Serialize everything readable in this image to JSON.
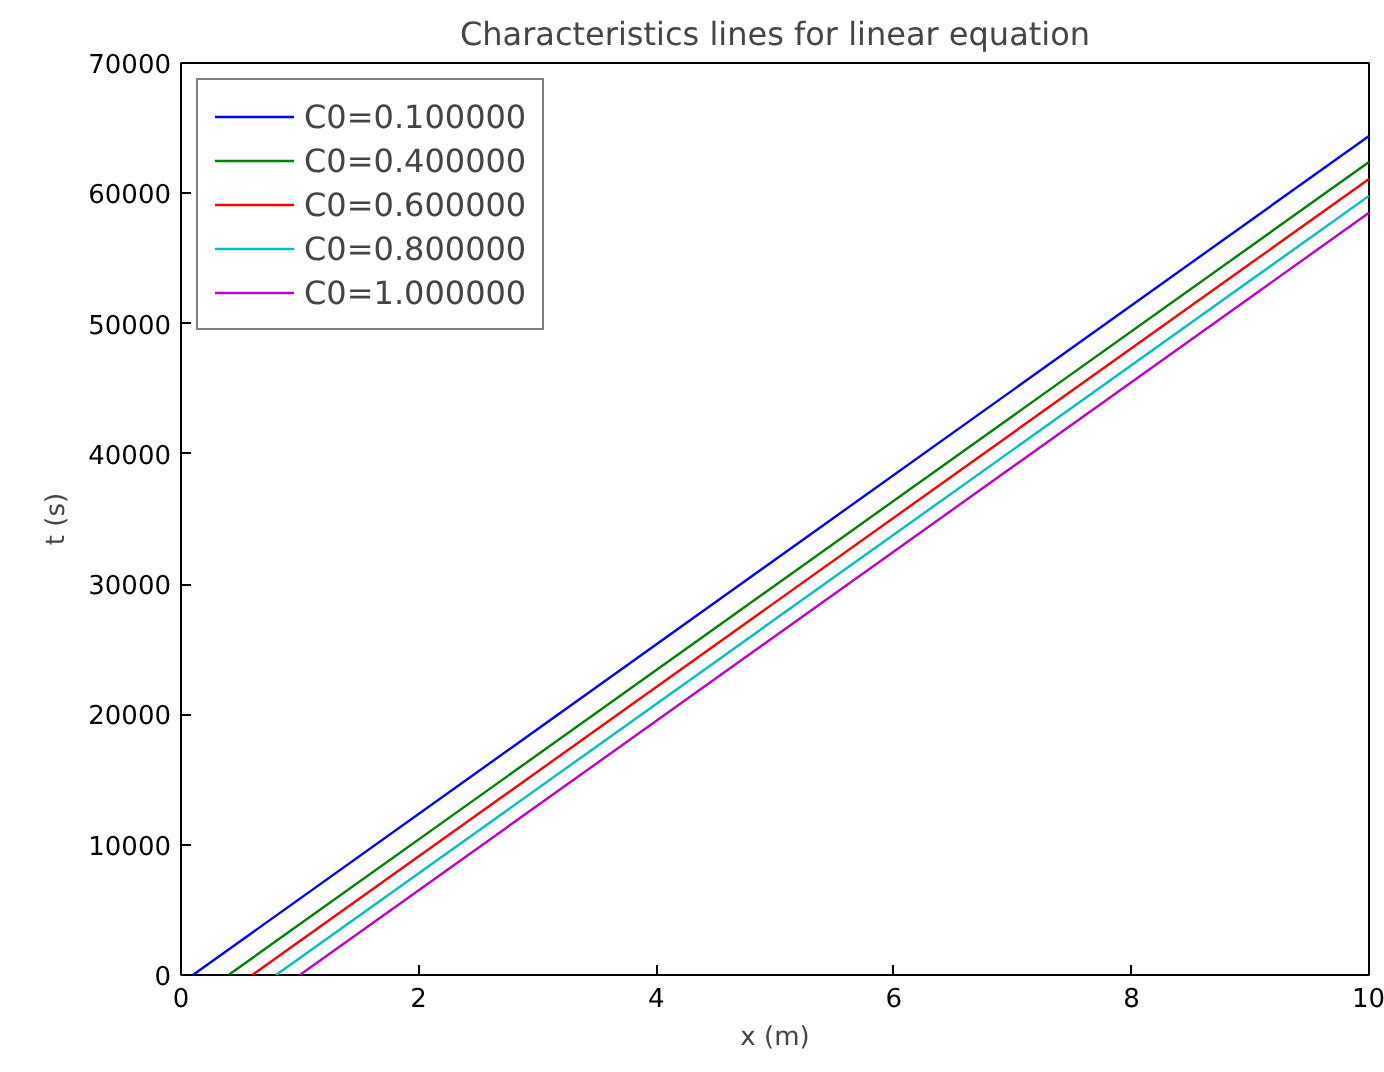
{
  "chart_data": {
    "type": "line",
    "title": "Characteristics lines for linear equation",
    "xlabel": "x (m)",
    "ylabel": "t (s)",
    "xlim": [
      0,
      10
    ],
    "ylim": [
      0,
      70000
    ],
    "xticks": [
      0,
      2,
      4,
      6,
      8,
      10
    ],
    "yticks": [
      0,
      10000,
      20000,
      30000,
      40000,
      50000,
      60000,
      70000
    ],
    "grid": false,
    "legend": "top left",
    "marker": "none",
    "line_style": "solid",
    "series": [
      {
        "name": "C0=0.100000",
        "color": "#0000ff",
        "x": [
          0.1,
          10
        ],
        "values": [
          0,
          64400
        ]
      },
      {
        "name": "C0=0.400000",
        "color": "#008000",
        "x": [
          0.4,
          10
        ],
        "values": [
          0,
          62400
        ]
      },
      {
        "name": "C0=0.600000",
        "color": "#ff0000",
        "x": [
          0.6,
          10
        ],
        "values": [
          0,
          61100
        ]
      },
      {
        "name": "C0=0.800000",
        "color": "#00bfbf",
        "x": [
          0.8,
          10
        ],
        "values": [
          0,
          59800
        ]
      },
      {
        "name": "C0=1.000000",
        "color": "#bf00bf",
        "x": [
          1.0,
          10
        ],
        "values": [
          0,
          58500
        ]
      }
    ]
  }
}
